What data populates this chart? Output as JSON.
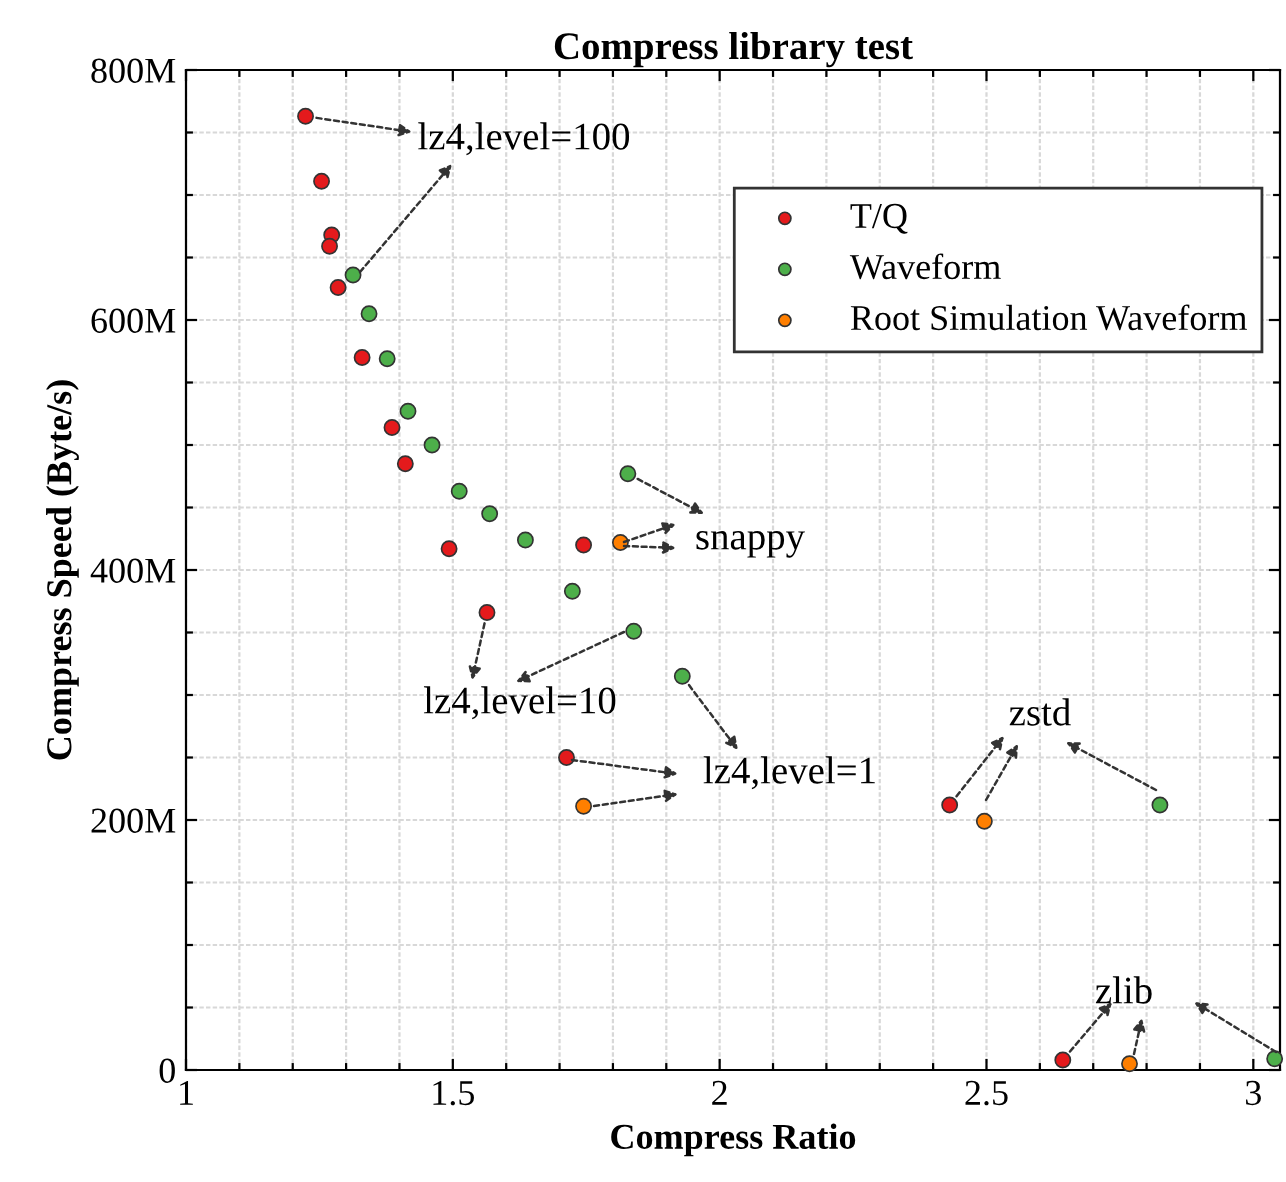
{
  "chart_data": {
    "type": "scatter",
    "title": "Compress library test",
    "xlabel": "Compress Ratio",
    "ylabel": "Compress Speed (Byte/s)",
    "series": [
      {
        "name": "T/Q",
        "color": "#e41a1c",
        "x": [
          1.224,
          1.254,
          1.273,
          1.269,
          1.285,
          1.33,
          1.386,
          1.411,
          1.493,
          1.745,
          1.564,
          1.713,
          2.431,
          2.643
        ],
        "values": [
          763000000,
          711000000,
          668000000,
          659000000,
          626000000,
          570000000,
          514000000,
          485000000,
          417000000,
          420000000,
          366000000,
          250000000,
          212000000,
          8000000
        ]
      },
      {
        "name": "Waveform",
        "color": "#4daf4a",
        "x": [
          1.313,
          1.343,
          1.377,
          1.416,
          1.461,
          1.512,
          1.569,
          1.636,
          1.828,
          1.724,
          1.839,
          1.93,
          2.825,
          3.04
        ],
        "values": [
          636000000,
          605000000,
          569000000,
          527000000,
          500000000,
          463000000,
          445000000,
          424000000,
          477000000,
          383000000,
          351000000,
          315000000,
          212000000,
          9000000
        ]
      },
      {
        "name": "Root Simulation Waveform",
        "color": "#ff7f00",
        "x": [
          1.814,
          1.745,
          2.496,
          2.768
        ],
        "values": [
          422000000,
          211000000,
          199000000,
          5000000
        ]
      }
    ],
    "annotations": [
      {
        "text": "lz4,level=100",
        "x": 1.224,
        "y": 763000000
      },
      {
        "text": "snappy",
        "x": 1.828,
        "y": 477000000
      },
      {
        "text": "lz4,level=10",
        "x": 1.564,
        "y": 366000000
      },
      {
        "text": "lz4,level=1",
        "x": 1.93,
        "y": 315000000
      },
      {
        "text": "zstd",
        "x": 2.431,
        "y": 212000000
      },
      {
        "text": "zlib",
        "x": 2.643,
        "y": 8000000
      }
    ],
    "xlim": [
      1,
      3.05
    ],
    "ylim": [
      0,
      800000000
    ],
    "xticks": [
      1,
      {
        "value": 1.1,
        "label": null
      },
      {
        "value": 1.2,
        "label": null
      },
      {
        "value": 1.3,
        "label": null
      },
      {
        "value": 1.4,
        "label": null
      },
      1.5,
      {
        "value": 1.6,
        "label": null
      },
      {
        "value": 1.7,
        "label": null
      },
      {
        "value": 1.8,
        "label": null
      },
      {
        "value": 1.9,
        "label": null
      },
      2,
      {
        "value": 2.1,
        "label": null
      },
      {
        "value": 2.2,
        "label": null
      },
      {
        "value": 2.3,
        "label": null
      },
      {
        "value": 2.4,
        "label": null
      },
      2.5,
      {
        "value": 2.6,
        "label": null
      },
      {
        "value": 2.7,
        "label": null
      },
      {
        "value": 2.8,
        "label": null
      },
      {
        "value": 2.9,
        "label": null
      },
      3
    ],
    "yticks": [
      {
        "value": 0,
        "label": "0"
      },
      {
        "value": 50000000,
        "label": null
      },
      {
        "value": 100000000,
        "label": null
      },
      {
        "value": 150000000,
        "label": null
      },
      {
        "value": 200000000,
        "label": "200M"
      },
      {
        "value": 250000000,
        "label": null
      },
      {
        "value": 300000000,
        "label": null
      },
      {
        "value": 350000000,
        "label": null
      },
      {
        "value": 400000000,
        "label": "400M"
      },
      {
        "value": 450000000,
        "label": null
      },
      {
        "value": 500000000,
        "label": null
      },
      {
        "value": 550000000,
        "label": null
      },
      {
        "value": 600000000,
        "label": "600M"
      },
      {
        "value": 650000000,
        "label": null
      },
      {
        "value": 700000000,
        "label": null
      },
      {
        "value": 750000000,
        "label": null
      },
      {
        "value": 800000000,
        "label": "800M"
      }
    ],
    "grid": true,
    "legend": "top right",
    "marker": "circle"
  }
}
